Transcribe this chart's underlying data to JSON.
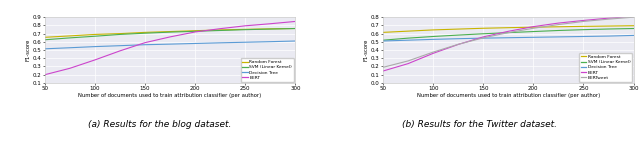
{
  "x": [
    50,
    75,
    100,
    125,
    150,
    175,
    200,
    225,
    250,
    275,
    300
  ],
  "blog": {
    "random_forest": [
      0.655,
      0.672,
      0.69,
      0.7,
      0.715,
      0.725,
      0.735,
      0.745,
      0.752,
      0.758,
      0.762
    ],
    "svm": [
      0.625,
      0.648,
      0.668,
      0.69,
      0.705,
      0.718,
      0.728,
      0.738,
      0.748,
      0.755,
      0.762
    ],
    "decision_tree": [
      0.515,
      0.528,
      0.542,
      0.553,
      0.565,
      0.572,
      0.58,
      0.588,
      0.595,
      0.602,
      0.61
    ],
    "bert": [
      0.2,
      0.278,
      0.38,
      0.49,
      0.59,
      0.66,
      0.72,
      0.76,
      0.795,
      0.82,
      0.848
    ]
  },
  "twitter": {
    "random_forest": [
      0.615,
      0.63,
      0.645,
      0.655,
      0.665,
      0.672,
      0.678,
      0.683,
      0.688,
      0.692,
      0.696
    ],
    "svm": [
      0.52,
      0.545,
      0.565,
      0.582,
      0.598,
      0.612,
      0.625,
      0.638,
      0.648,
      0.656,
      0.662
    ],
    "decision_tree": [
      0.51,
      0.52,
      0.53,
      0.538,
      0.545,
      0.55,
      0.555,
      0.56,
      0.565,
      0.57,
      0.578
    ],
    "bert": [
      0.145,
      0.235,
      0.36,
      0.468,
      0.56,
      0.628,
      0.685,
      0.728,
      0.76,
      0.788,
      0.808
    ],
    "bertweet": [
      0.19,
      0.268,
      0.375,
      0.47,
      0.548,
      0.612,
      0.665,
      0.71,
      0.748,
      0.776,
      0.8
    ]
  },
  "colors": {
    "random_forest": "#c8b400",
    "svm": "#4caf50",
    "decision_tree": "#5b9bd5",
    "bert": "#cc44cc",
    "bertweet": "#aaaaaa"
  },
  "xlabel": "Number of documents used to train attribution classifier (per author)",
  "ylabel": "F1-score",
  "xlim": [
    50,
    300
  ],
  "blog_ylim": [
    0.1,
    0.9
  ],
  "twitter_ylim": [
    0.0,
    0.8
  ],
  "blog_yticks": [
    0.1,
    0.2,
    0.3,
    0.4,
    0.5,
    0.6,
    0.7,
    0.8,
    0.9
  ],
  "twitter_yticks": [
    0.0,
    0.1,
    0.2,
    0.3,
    0.4,
    0.5,
    0.6,
    0.7,
    0.8
  ],
  "xticks": [
    50,
    100,
    150,
    200,
    250,
    300
  ],
  "caption_blog": "(a) Results for the blog dataset.",
  "caption_twitter": "(b) Results for the Twitter dataset.",
  "legend_blog": [
    "Random Forest",
    "SVM (Linear Kernel)",
    "Decision Tree",
    "BERT"
  ],
  "legend_twitter": [
    "Random Forest",
    "SVM (Linear Kernel)",
    "Decision Tree",
    "BERT",
    "BERTweet"
  ],
  "bg_color": "#eaeaf2",
  "grid_color": "white",
  "linewidth": 0.8,
  "tick_fontsize": 4.0,
  "label_fontsize": 3.8,
  "legend_fontsize": 3.2,
  "caption_fontsize": 6.5
}
